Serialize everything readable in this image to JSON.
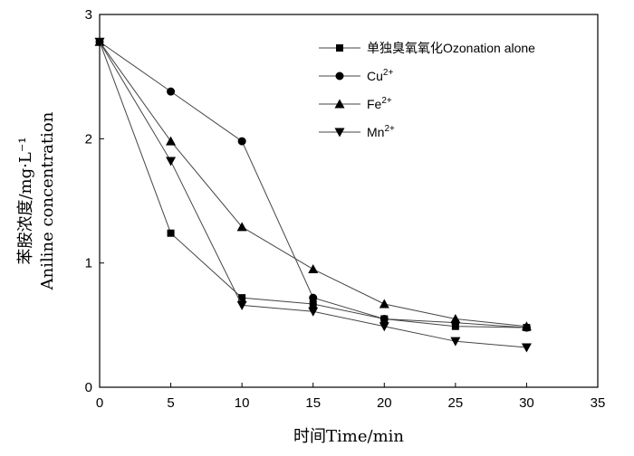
{
  "chart_data": {
    "type": "line",
    "title": "",
    "xlabel": "时间Time/min",
    "ylabel_cn": "苯胺浓度/mg·L⁻¹",
    "ylabel_en": "Aniline concentration",
    "xlim": [
      0,
      35
    ],
    "ylim": [
      0,
      3
    ],
    "xticks": [
      0,
      5,
      10,
      15,
      20,
      25,
      30,
      35
    ],
    "yticks": [
      0,
      1,
      2,
      3
    ],
    "grid": false,
    "legend_position": "top-right",
    "x": [
      0,
      5,
      10,
      15,
      20,
      25,
      30
    ],
    "series": [
      {
        "name": "单独臭氧氧化Ozonation alone",
        "label_main": "单独臭氧氧化Ozonation alone",
        "label_sup": "",
        "marker": "square",
        "values": [
          2.78,
          1.24,
          0.72,
          0.67,
          0.55,
          0.49,
          0.48
        ]
      },
      {
        "name": "Cu2+",
        "label_main": "Cu",
        "label_sup": "2+",
        "marker": "circle",
        "values": [
          2.78,
          2.38,
          1.98,
          0.72,
          0.55,
          0.52,
          0.48
        ]
      },
      {
        "name": "Fe2+",
        "label_main": "Fe",
        "label_sup": "2+",
        "marker": "triangle-up",
        "values": [
          2.78,
          1.98,
          1.29,
          0.95,
          0.67,
          0.55,
          0.49
        ]
      },
      {
        "name": "Mn2+",
        "label_main": "Mn",
        "label_sup": "2+",
        "marker": "triangle-down",
        "values": [
          2.78,
          1.82,
          0.66,
          0.61,
          0.49,
          0.37,
          0.32
        ]
      }
    ]
  }
}
